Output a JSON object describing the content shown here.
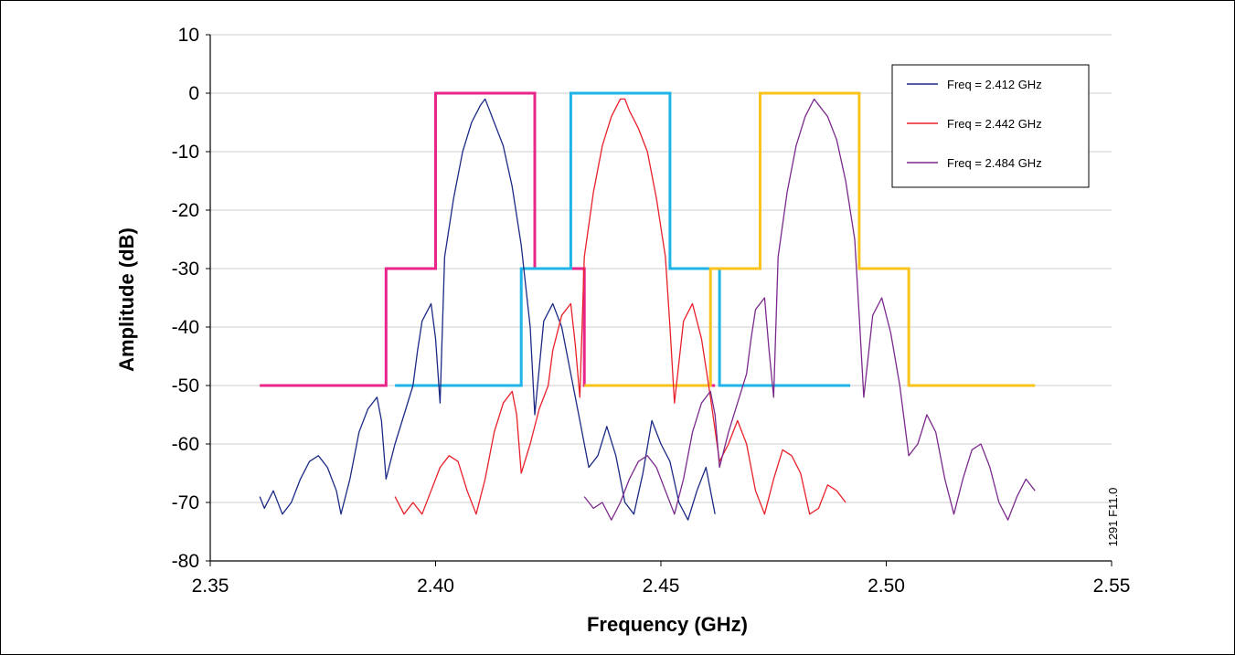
{
  "figure_id": "1291 F11.0",
  "chart_data": {
    "type": "line",
    "xlabel": "Frequency (GHz)",
    "ylabel": "Amplitude (dB)",
    "xlim": [
      2.35,
      2.55
    ],
    "ylim": [
      -80,
      10
    ],
    "x_ticks": [
      "2.35",
      "2.40",
      "2.45",
      "2.50",
      "2.55"
    ],
    "y_ticks": [
      "10",
      "0",
      "-10",
      "-20",
      "-30",
      "-40",
      "-50",
      "-60",
      "-70",
      "-80"
    ],
    "grid": "horizontal",
    "legend_position": "top-right",
    "series": [
      {
        "name": "Freq = 2.412 GHz",
        "color": "#1c2a85",
        "points": [
          [
            2.361,
            -69
          ],
          [
            2.362,
            -71
          ],
          [
            2.364,
            -68
          ],
          [
            2.366,
            -72
          ],
          [
            2.368,
            -70
          ],
          [
            2.37,
            -66
          ],
          [
            2.372,
            -63
          ],
          [
            2.374,
            -62
          ],
          [
            2.376,
            -64
          ],
          [
            2.378,
            -68
          ],
          [
            2.379,
            -72
          ],
          [
            2.381,
            -66
          ],
          [
            2.383,
            -58
          ],
          [
            2.385,
            -54
          ],
          [
            2.387,
            -52
          ],
          [
            2.388,
            -56
          ],
          [
            2.389,
            -66
          ],
          [
            2.391,
            -60
          ],
          [
            2.393,
            -55
          ],
          [
            2.395,
            -50
          ],
          [
            2.396,
            -44
          ],
          [
            2.397,
            -39
          ],
          [
            2.399,
            -36
          ],
          [
            2.4,
            -42
          ],
          [
            2.401,
            -53
          ],
          [
            2.402,
            -28
          ],
          [
            2.404,
            -18
          ],
          [
            2.406,
            -10
          ],
          [
            2.408,
            -5
          ],
          [
            2.41,
            -2
          ],
          [
            2.411,
            -1
          ],
          [
            2.412,
            -3
          ],
          [
            2.413,
            -5
          ],
          [
            2.415,
            -9
          ],
          [
            2.417,
            -16
          ],
          [
            2.419,
            -26
          ],
          [
            2.421,
            -40
          ],
          [
            2.422,
            -55
          ],
          [
            2.424,
            -39
          ],
          [
            2.426,
            -36
          ],
          [
            2.428,
            -40
          ],
          [
            2.43,
            -48
          ],
          [
            2.432,
            -56
          ],
          [
            2.434,
            -64
          ],
          [
            2.436,
            -62
          ],
          [
            2.438,
            -57
          ],
          [
            2.44,
            -62
          ],
          [
            2.442,
            -70
          ],
          [
            2.444,
            -72
          ],
          [
            2.446,
            -65
          ],
          [
            2.448,
            -56
          ],
          [
            2.45,
            -60
          ],
          [
            2.452,
            -63
          ],
          [
            2.454,
            -70
          ],
          [
            2.456,
            -73
          ],
          [
            2.458,
            -68
          ],
          [
            2.46,
            -64
          ],
          [
            2.462,
            -72
          ]
        ]
      },
      {
        "name": "Freq = 2.442 GHz",
        "color": "#e8202a",
        "points": [
          [
            2.391,
            -69
          ],
          [
            2.393,
            -72
          ],
          [
            2.395,
            -70
          ],
          [
            2.397,
            -72
          ],
          [
            2.399,
            -68
          ],
          [
            2.401,
            -64
          ],
          [
            2.403,
            -62
          ],
          [
            2.405,
            -63
          ],
          [
            2.407,
            -68
          ],
          [
            2.409,
            -72
          ],
          [
            2.411,
            -66
          ],
          [
            2.413,
            -58
          ],
          [
            2.415,
            -53
          ],
          [
            2.417,
            -51
          ],
          [
            2.418,
            -55
          ],
          [
            2.419,
            -65
          ],
          [
            2.421,
            -60
          ],
          [
            2.423,
            -54
          ],
          [
            2.425,
            -50
          ],
          [
            2.426,
            -44
          ],
          [
            2.428,
            -38
          ],
          [
            2.43,
            -36
          ],
          [
            2.431,
            -43
          ],
          [
            2.432,
            -52
          ],
          [
            2.433,
            -28
          ],
          [
            2.435,
            -17
          ],
          [
            2.437,
            -9
          ],
          [
            2.439,
            -4
          ],
          [
            2.441,
            -1
          ],
          [
            2.442,
            -1
          ],
          [
            2.443,
            -3
          ],
          [
            2.445,
            -6
          ],
          [
            2.447,
            -10
          ],
          [
            2.449,
            -18
          ],
          [
            2.451,
            -28
          ],
          [
            2.452,
            -40
          ],
          [
            2.453,
            -53
          ],
          [
            2.455,
            -39
          ],
          [
            2.457,
            -36
          ],
          [
            2.459,
            -42
          ],
          [
            2.461,
            -52
          ],
          [
            2.463,
            -63
          ],
          [
            2.465,
            -60
          ],
          [
            2.467,
            -56
          ],
          [
            2.469,
            -60
          ],
          [
            2.471,
            -68
          ],
          [
            2.473,
            -72
          ],
          [
            2.475,
            -66
          ],
          [
            2.477,
            -61
          ],
          [
            2.479,
            -62
          ],
          [
            2.481,
            -65
          ],
          [
            2.483,
            -72
          ],
          [
            2.485,
            -71
          ],
          [
            2.487,
            -67
          ],
          [
            2.489,
            -68
          ],
          [
            2.491,
            -70
          ]
        ]
      },
      {
        "name": "Freq = 2.484 GHz",
        "color": "#7b2a8c",
        "points": [
          [
            2.433,
            -69
          ],
          [
            2.435,
            -71
          ],
          [
            2.437,
            -70
          ],
          [
            2.439,
            -73
          ],
          [
            2.441,
            -70
          ],
          [
            2.443,
            -66
          ],
          [
            2.445,
            -63
          ],
          [
            2.447,
            -62
          ],
          [
            2.449,
            -64
          ],
          [
            2.451,
            -68
          ],
          [
            2.453,
            -72
          ],
          [
            2.455,
            -66
          ],
          [
            2.457,
            -58
          ],
          [
            2.459,
            -53
          ],
          [
            2.461,
            -51
          ],
          [
            2.462,
            -55
          ],
          [
            2.463,
            -64
          ],
          [
            2.465,
            -58
          ],
          [
            2.467,
            -53
          ],
          [
            2.469,
            -48
          ],
          [
            2.47,
            -42
          ],
          [
            2.471,
            -37
          ],
          [
            2.473,
            -35
          ],
          [
            2.474,
            -44
          ],
          [
            2.475,
            -52
          ],
          [
            2.476,
            -28
          ],
          [
            2.478,
            -17
          ],
          [
            2.48,
            -9
          ],
          [
            2.482,
            -4
          ],
          [
            2.484,
            -1
          ],
          [
            2.485,
            -2
          ],
          [
            2.487,
            -4
          ],
          [
            2.489,
            -8
          ],
          [
            2.491,
            -15
          ],
          [
            2.493,
            -25
          ],
          [
            2.494,
            -38
          ],
          [
            2.495,
            -52
          ],
          [
            2.497,
            -38
          ],
          [
            2.499,
            -35
          ],
          [
            2.501,
            -41
          ],
          [
            2.503,
            -50
          ],
          [
            2.505,
            -62
          ],
          [
            2.507,
            -60
          ],
          [
            2.509,
            -55
          ],
          [
            2.511,
            -58
          ],
          [
            2.513,
            -66
          ],
          [
            2.515,
            -72
          ],
          [
            2.517,
            -66
          ],
          [
            2.519,
            -61
          ],
          [
            2.521,
            -60
          ],
          [
            2.523,
            -64
          ],
          [
            2.525,
            -70
          ],
          [
            2.527,
            -73
          ],
          [
            2.529,
            -69
          ],
          [
            2.531,
            -66
          ],
          [
            2.533,
            -68
          ]
        ]
      }
    ],
    "masks": [
      {
        "color": "#e8258a",
        "points": [
          [
            2.361,
            -50
          ],
          [
            2.389,
            -50
          ],
          [
            2.389,
            -30
          ],
          [
            2.4,
            -30
          ],
          [
            2.4,
            0
          ],
          [
            2.422,
            0
          ],
          [
            2.422,
            -30
          ],
          [
            2.433,
            -30
          ],
          [
            2.433,
            -50
          ],
          [
            2.462,
            -50
          ]
        ]
      },
      {
        "color": "#1eb4e6",
        "points": [
          [
            2.391,
            -50
          ],
          [
            2.419,
            -50
          ],
          [
            2.419,
            -30
          ],
          [
            2.43,
            -30
          ],
          [
            2.43,
            0
          ],
          [
            2.452,
            0
          ],
          [
            2.452,
            -30
          ],
          [
            2.463,
            -30
          ],
          [
            2.463,
            -50
          ],
          [
            2.492,
            -50
          ]
        ]
      },
      {
        "color": "#f7c31c",
        "points": [
          [
            2.433,
            -50
          ],
          [
            2.461,
            -50
          ],
          [
            2.461,
            -30
          ],
          [
            2.472,
            -30
          ],
          [
            2.472,
            0
          ],
          [
            2.494,
            0
          ],
          [
            2.494,
            -30
          ],
          [
            2.505,
            -30
          ],
          [
            2.505,
            -50
          ],
          [
            2.533,
            -50
          ]
        ]
      }
    ]
  }
}
